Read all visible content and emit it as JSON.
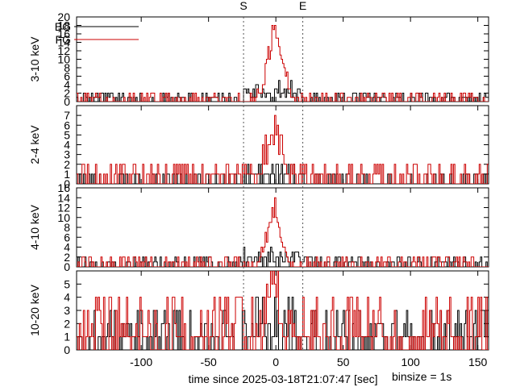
{
  "chart_data": {
    "type": "line",
    "subtype": "step-histogram",
    "xlabel": "time since 2025-03-18T21:07:47 [sec]",
    "binsize_label": "binsize = 1s",
    "xlim": [
      -148,
      158
    ],
    "xticks": [
      -100,
      -50,
      0,
      50,
      100,
      150
    ],
    "markers": [
      {
        "label": "S",
        "x": -24
      },
      {
        "label": "E",
        "x": 20
      }
    ],
    "legend": {
      "placement": "top-left",
      "entries": [
        {
          "name": "BG",
          "color": "#000000"
        },
        {
          "name": "FG",
          "color": "#cc0000"
        }
      ]
    },
    "panels": [
      {
        "ylabel": "3-10 keV",
        "ylim": [
          0,
          20
        ],
        "yticks": [
          0,
          2,
          4,
          6,
          8,
          10,
          12,
          14,
          16,
          18,
          20
        ],
        "series": [
          {
            "name": "BG",
            "color": "#000000",
            "bg_max": 2,
            "peak_add": 3
          },
          {
            "name": "FG",
            "color": "#cc0000",
            "bg_max": 2,
            "peak": 19,
            "peak_x": -1,
            "width": 11
          }
        ]
      },
      {
        "ylabel": "2-4 keV",
        "ylim": [
          0,
          8
        ],
        "yticks": [
          0,
          1,
          2,
          3,
          4,
          5,
          6,
          7
        ],
        "series": [
          {
            "name": "BG",
            "color": "#000000",
            "bg_max": 1,
            "peak_add": 1
          },
          {
            "name": "FG",
            "color": "#cc0000",
            "bg_max": 2,
            "peak": 7,
            "peak_x": -2,
            "width": 10
          }
        ]
      },
      {
        "ylabel": "4-10 keV",
        "ylim": [
          0,
          16
        ],
        "yticks": [
          0,
          2,
          4,
          6,
          8,
          10,
          12,
          14,
          16
        ],
        "series": [
          {
            "name": "BG",
            "color": "#000000",
            "bg_max": 2,
            "peak_add": 2
          },
          {
            "name": "FG",
            "color": "#cc0000",
            "bg_max": 2,
            "peak": 14,
            "peak_x": -2,
            "width": 10
          }
        ]
      },
      {
        "ylabel": "10-20 keV",
        "ylim": [
          0,
          6
        ],
        "yticks": [
          0,
          1,
          2,
          3,
          4,
          5
        ],
        "series": [
          {
            "name": "BG",
            "color": "#000000",
            "bg_max": 3,
            "peak_add": 1
          },
          {
            "name": "FG",
            "color": "#cc0000",
            "bg_max": 4,
            "peak": 6,
            "peak_x": -3,
            "width": 6
          }
        ]
      }
    ]
  }
}
